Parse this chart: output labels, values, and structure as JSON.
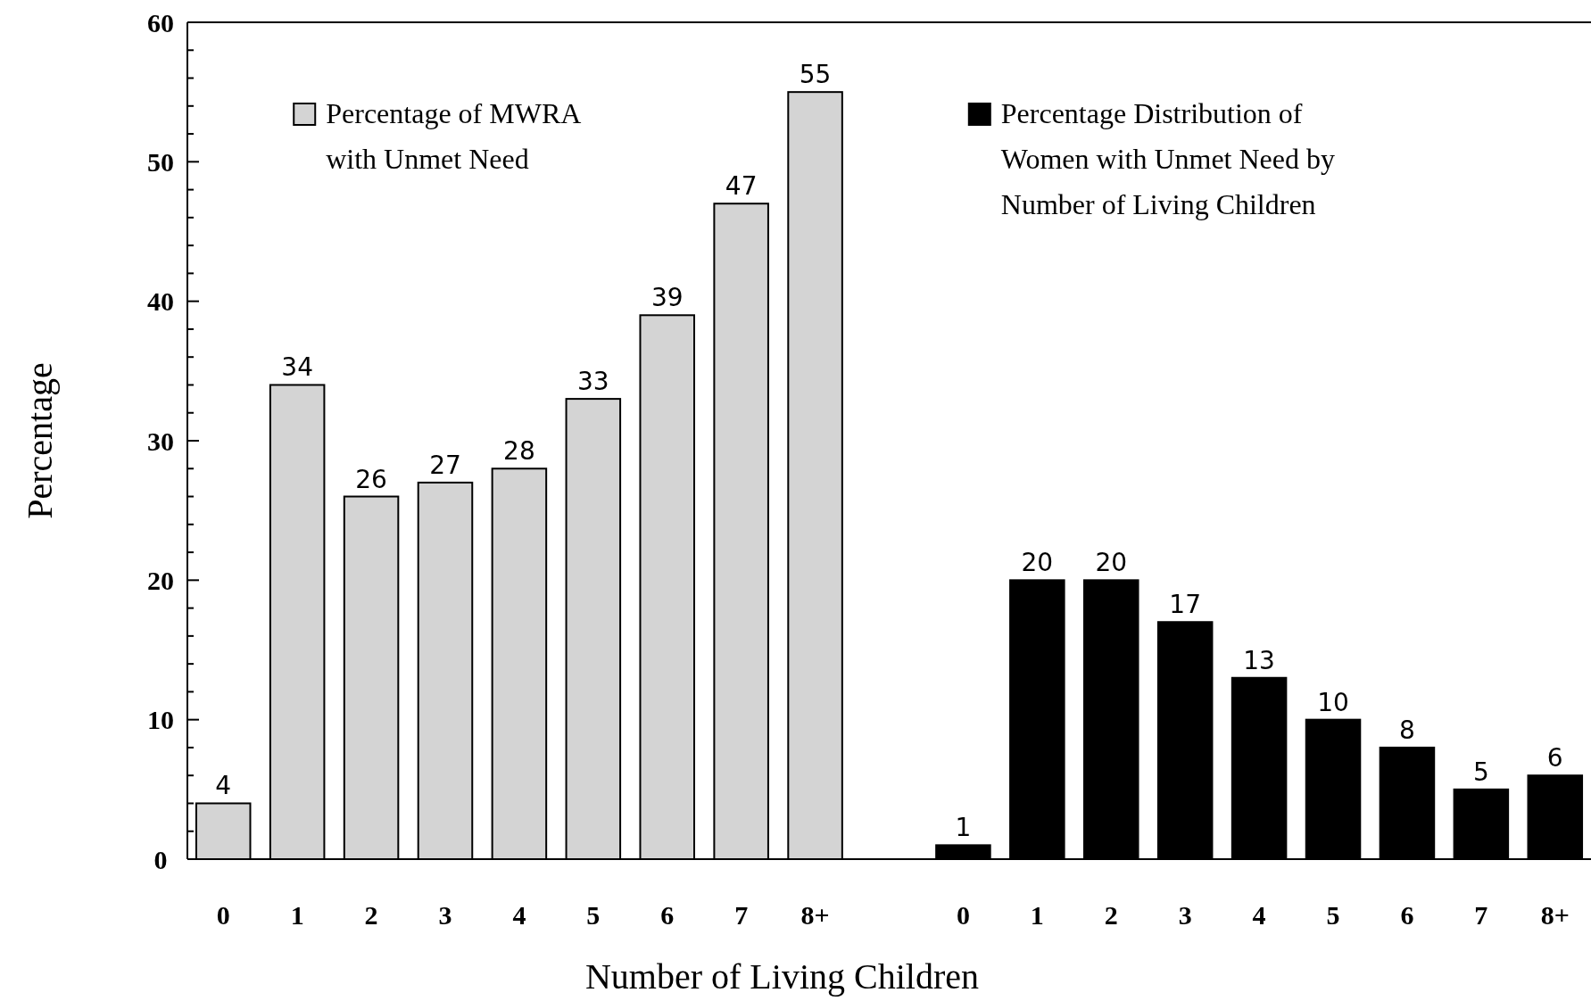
{
  "chart_data": {
    "type": "bar",
    "xlabel": "Number of Living Children",
    "ylabel": "Percentage",
    "categories": [
      "0",
      "1",
      "2",
      "3",
      "4",
      "5",
      "6",
      "7",
      "8+",
      null,
      "0",
      "1",
      "2",
      "3",
      "4",
      "5",
      "6",
      "7",
      "8+"
    ],
    "series": [
      {
        "name": "Percentage of MWRA with Unmet Need",
        "color": "#d4d4d4",
        "values": [
          4,
          34,
          26,
          27,
          28,
          33,
          39,
          47,
          55,
          null,
          null,
          null,
          null,
          null,
          null,
          null,
          null,
          null,
          null
        ]
      },
      {
        "name": "Percentage Distribution of Women with Unmet Need by Number of Living Children",
        "color": "#000000",
        "values": [
          null,
          null,
          null,
          null,
          null,
          null,
          null,
          null,
          null,
          null,
          1,
          20,
          20,
          17,
          13,
          10,
          8,
          5,
          6
        ]
      }
    ],
    "ylim": [
      0,
      60
    ],
    "yticks": [
      0,
      {
        "value": 2,
        "label": null
      },
      {
        "value": 4,
        "label": null
      },
      {
        "value": 6,
        "label": null
      },
      {
        "value": 8,
        "label": null
      },
      10,
      {
        "value": 12,
        "label": null
      },
      {
        "value": 14,
        "label": null
      },
      {
        "value": 16,
        "label": null
      },
      {
        "value": 18,
        "label": null
      },
      20,
      {
        "value": 22,
        "label": null
      },
      {
        "value": 24,
        "label": null
      },
      {
        "value": 26,
        "label": null
      },
      {
        "value": 28,
        "label": null
      },
      30,
      {
        "value": 32,
        "label": null
      },
      {
        "value": 34,
        "label": null
      },
      {
        "value": 36,
        "label": null
      },
      {
        "value": 38,
        "label": null
      },
      40,
      {
        "value": 42,
        "label": null
      },
      {
        "value": 44,
        "label": null
      },
      {
        "value": 46,
        "label": null
      },
      {
        "value": 48,
        "label": null
      },
      50,
      {
        "value": 52,
        "label": null
      },
      {
        "value": 54,
        "label": null
      },
      {
        "value": 56,
        "label": null
      },
      {
        "value": 58,
        "label": null
      },
      60
    ],
    "data_labels": true,
    "grid": false,
    "legend": "top"
  }
}
